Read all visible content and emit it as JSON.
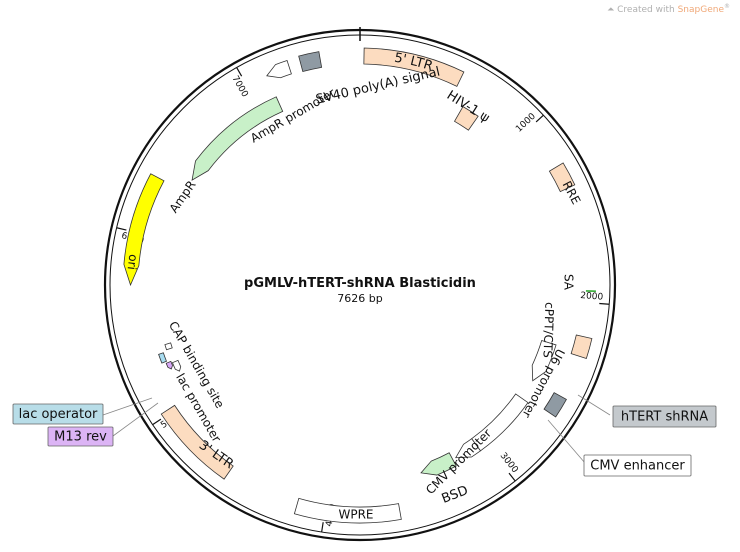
{
  "watermark": {
    "prefix": "Created with",
    "brand": "SnapGene",
    "mark": "®"
  },
  "plasmid": {
    "name": "pGMLV-hTERT-shRNA Blasticidin",
    "length_label": "7626 bp"
  },
  "ticks": [
    "1000",
    "2000",
    "3000",
    "4000",
    "5000",
    "6000",
    "7000"
  ],
  "features": [
    {
      "id": "ltr5",
      "label": "5' LTR",
      "color": "#fcdcc0"
    },
    {
      "id": "hiv1psi",
      "label": "HIV-1 ψ",
      "color": "#fcdcc0"
    },
    {
      "id": "rre",
      "label": "RRE",
      "color": "#fcdcc0"
    },
    {
      "id": "sa",
      "label": "SA",
      "color": "#33aa33"
    },
    {
      "id": "cppt",
      "label": "cPPT/CTS",
      "color": "#fcdcc0"
    },
    {
      "id": "u6",
      "label": "U6 promoter",
      "color": "#ffffff"
    },
    {
      "id": "shrna",
      "label": "hTERT shRNA",
      "color": "#8f9aa3"
    },
    {
      "id": "cmvenh",
      "label": "CMV enhancer",
      "color": "#ffffff"
    },
    {
      "id": "cmvprom",
      "label": "CMV promoter",
      "color": "#ffffff"
    },
    {
      "id": "bsd",
      "label": "BSD",
      "color": "#c8f0c8"
    },
    {
      "id": "wpre",
      "label": "WPRE",
      "color": "#ffffff"
    },
    {
      "id": "ltr3",
      "label": "3' LTR",
      "color": "#fcdcc0"
    },
    {
      "id": "lacprom",
      "label": "lac promoter",
      "color": "#ffffff"
    },
    {
      "id": "m13",
      "label": "M13 rev",
      "color": "#d8a8f8"
    },
    {
      "id": "lacop",
      "label": "lac operator",
      "color": "#a8dcf0"
    },
    {
      "id": "cap",
      "label": "CAP binding site",
      "color": "#ffffff"
    },
    {
      "id": "ori",
      "label": "ori",
      "color": "#ffff00"
    },
    {
      "id": "ampr",
      "label": "AmpR",
      "color": "#c8f0c8"
    },
    {
      "id": "amprprom",
      "label": "AmpR promoter",
      "color": "#ffffff"
    },
    {
      "id": "sv40",
      "label": "SV40 poly(A) signal",
      "color": "#8f9aa3"
    }
  ]
}
